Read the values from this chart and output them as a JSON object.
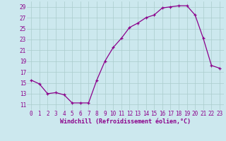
{
  "x": [
    0,
    1,
    2,
    3,
    4,
    5,
    6,
    7,
    8,
    9,
    10,
    11,
    12,
    13,
    14,
    15,
    16,
    17,
    18,
    19,
    20,
    21,
    22,
    23
  ],
  "y": [
    15.5,
    14.8,
    13.0,
    13.2,
    12.8,
    11.3,
    11.3,
    11.3,
    15.5,
    19.0,
    21.5,
    23.2,
    25.2,
    26.0,
    27.0,
    27.5,
    28.8,
    29.0,
    29.2,
    29.2,
    27.5,
    23.2,
    18.2,
    17.7
  ],
  "line_color": "#8B008B",
  "marker": "+",
  "markersize": 3,
  "linewidth": 0.9,
  "bg_color": "#cce8ee",
  "grid_color": "#aacccc",
  "xlabel": "Windchill (Refroidissement éolien,°C)",
  "xlabel_color": "#8B008B",
  "tick_color": "#8B008B",
  "ylim": [
    10,
    30
  ],
  "xlim": [
    -0.5,
    23.5
  ],
  "yticks": [
    11,
    13,
    15,
    17,
    19,
    21,
    23,
    25,
    27,
    29
  ],
  "xticks": [
    0,
    1,
    2,
    3,
    4,
    5,
    6,
    7,
    8,
    9,
    10,
    11,
    12,
    13,
    14,
    15,
    16,
    17,
    18,
    19,
    20,
    21,
    22,
    23
  ],
  "tick_fontsize": 5.5,
  "xlabel_fontsize": 6.0
}
